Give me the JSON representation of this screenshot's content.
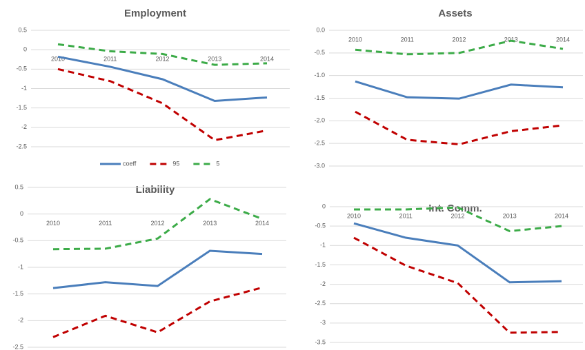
{
  "chart_data": [
    {
      "type": "line",
      "title": "Employment",
      "categories": [
        "2010",
        "2011",
        "2012",
        "2013",
        "2014"
      ],
      "series": [
        {
          "name": "coeff",
          "color": "#4a7ebb",
          "dash": "solid",
          "values": [
            -0.18,
            -0.44,
            -0.76,
            -1.32,
            -1.23
          ]
        },
        {
          "name": "95",
          "color": "#c00000",
          "dash": "dashed",
          "values": [
            -0.5,
            -0.81,
            -1.38,
            -2.33,
            -2.08
          ]
        },
        {
          "name": "5",
          "color": "#3cab48",
          "dash": "dashed",
          "values": [
            0.14,
            -0.04,
            -0.11,
            -0.39,
            -0.35
          ]
        }
      ],
      "ylim": [
        -2.5,
        0.5
      ],
      "yticks": [
        0.5,
        0,
        -0.5,
        -1,
        -1.5,
        -2,
        -2.5
      ],
      "grid": true,
      "legend": "bottom"
    },
    {
      "type": "line",
      "title": "Assets",
      "categories": [
        "2010",
        "2011",
        "2012",
        "2013",
        "2014"
      ],
      "series": [
        {
          "name": "coeff",
          "color": "#4a7ebb",
          "dash": "solid",
          "values": [
            -1.13,
            -1.48,
            -1.51,
            -1.2,
            -1.26
          ]
        },
        {
          "name": "95",
          "color": "#c00000",
          "dash": "dashed",
          "values": [
            -1.8,
            -2.42,
            -2.52,
            -2.23,
            -2.1
          ]
        },
        {
          "name": "5",
          "color": "#3cab48",
          "dash": "dashed",
          "values": [
            -0.43,
            -0.53,
            -0.5,
            -0.23,
            -0.41
          ]
        }
      ],
      "ylim": [
        -3,
        0
      ],
      "yticks": [
        {
          "value": 0,
          "label": "0.0"
        },
        -0.5,
        {
          "value": -1,
          "label": "-1.0"
        },
        -1.5,
        {
          "value": -2,
          "label": "-2.0"
        },
        -2.5,
        {
          "value": -3,
          "label": "-3.0"
        }
      ],
      "grid": true
    },
    {
      "type": "line",
      "title": "Liability",
      "categories": [
        "2010",
        "2011",
        "2012",
        "2013",
        "2014"
      ],
      "series": [
        {
          "name": "coeff",
          "color": "#4a7ebb",
          "dash": "solid",
          "values": [
            -1.39,
            -1.28,
            -1.35,
            -0.69,
            -0.75
          ]
        },
        {
          "name": "95",
          "color": "#c00000",
          "dash": "dashed",
          "values": [
            -2.31,
            -1.91,
            -2.22,
            -1.64,
            -1.38
          ]
        },
        {
          "name": "5",
          "color": "#3cab48",
          "dash": "dashed",
          "values": [
            -0.66,
            -0.65,
            -0.46,
            0.28,
            -0.09
          ]
        }
      ],
      "ylim": [
        -2.5,
        0.5
      ],
      "yticks": [
        0.5,
        0,
        -0.5,
        -1,
        -1.5,
        -2,
        -2.5
      ],
      "grid": true
    },
    {
      "type": "line",
      "title": "Int. Comm.",
      "categories": [
        "2010",
        "2011",
        "2012",
        "2013",
        "2014"
      ],
      "series": [
        {
          "name": "coeff",
          "color": "#4a7ebb",
          "dash": "solid",
          "values": [
            -0.43,
            -0.8,
            -1.0,
            -1.95,
            -1.92
          ]
        },
        {
          "name": "95",
          "color": "#c00000",
          "dash": "dashed",
          "values": [
            -0.8,
            -1.52,
            -1.97,
            -3.25,
            -3.23
          ]
        },
        {
          "name": "5",
          "color": "#3cab48",
          "dash": "dashed",
          "values": [
            -0.07,
            -0.07,
            -0.02,
            -0.63,
            -0.5
          ]
        }
      ],
      "ylim": [
        -3.5,
        0
      ],
      "yticks": [
        0,
        -0.5,
        -1,
        -1.5,
        -2,
        -2.5,
        -3,
        -3.5
      ],
      "grid": true
    }
  ]
}
